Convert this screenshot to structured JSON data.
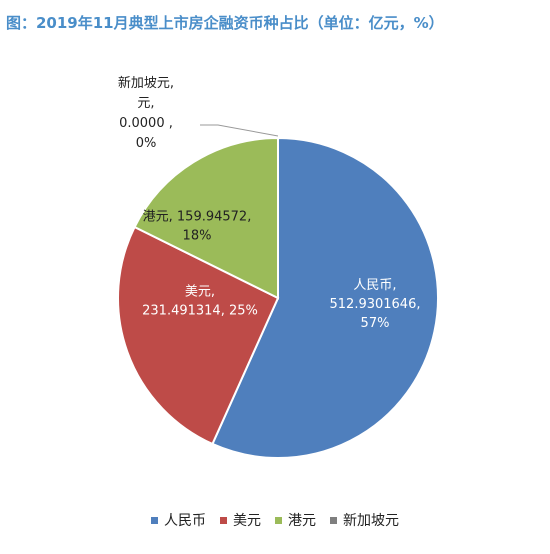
{
  "chart_data": {
    "type": "pie",
    "title": "图：2019年11月典型上市房企融资币种占比（单位：亿元，%）",
    "categories": [
      "人民币",
      "美元",
      "港元",
      "新加坡元"
    ],
    "values": [
      512.9301646,
      231.491314,
      159.94572,
      0.0
    ],
    "percentages": [
      "57%",
      "25%",
      "18%",
      "0%"
    ],
    "colors": [
      "#4f7fbd",
      "#be4b48",
      "#9bbb59",
      "#7f7f7f"
    ],
    "data_labels": [
      [
        "人民币,",
        "512.9301646,",
        "57%"
      ],
      [
        "美元,",
        "231.491314, 25%"
      ],
      [
        "港元, 159.94572,",
        "18%"
      ],
      [
        "新加坡元,",
        "元,",
        "0.0000 ,",
        "0%"
      ]
    ],
    "legend_position": "bottom"
  }
}
